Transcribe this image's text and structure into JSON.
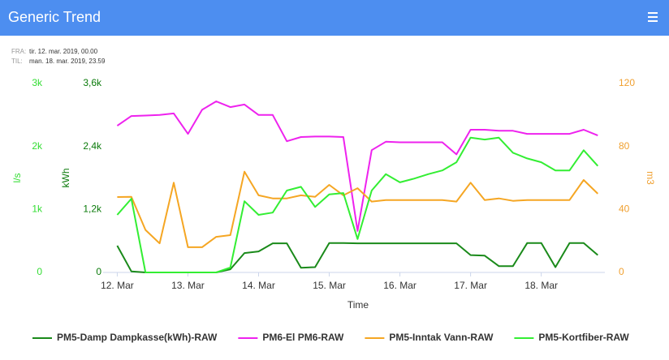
{
  "header": {
    "title": "Generic Trend"
  },
  "range": {
    "from_label": "FRA:",
    "from": "tir. 12. mar. 2019, 00.00",
    "to_label": "TIL:",
    "to": "man. 18. mar. 2019, 23.59"
  },
  "chart_data": {
    "type": "line",
    "x_label": "Time",
    "y_label": "kWh",
    "y2_label": "m3",
    "y3_label": "l/s",
    "x": [
      12.0,
      12.2,
      12.4,
      12.6,
      12.8,
      13.0,
      13.2,
      13.4,
      13.6,
      13.8,
      14.0,
      14.2,
      14.4,
      14.6,
      14.8,
      15.0,
      15.2,
      15.4,
      15.6,
      15.8,
      16.0,
      16.2,
      16.4,
      16.6,
      16.8,
      17.0,
      17.2,
      17.4,
      17.6,
      17.8,
      18.0,
      18.2,
      18.4,
      18.6,
      18.8
    ],
    "xlim": [
      11.8,
      18.9
    ],
    "xticks": [
      {
        "value": 12,
        "label": "12. Mar"
      },
      {
        "value": 13,
        "label": "13. Mar"
      },
      {
        "value": 14,
        "label": "14. Mar"
      },
      {
        "value": 15,
        "label": "15. Mar"
      },
      {
        "value": 16,
        "label": "16. Mar"
      },
      {
        "value": 17,
        "label": "17. Mar"
      },
      {
        "value": 18,
        "label": "18. Mar"
      }
    ],
    "ylim": [
      0,
      3600
    ],
    "yticks": [
      0,
      {
        "value": 1200,
        "label": "1,2k"
      },
      {
        "value": 2400,
        "label": "2,4k"
      },
      {
        "value": 3600,
        "label": "3,6k"
      }
    ],
    "y_color": "#0a7a0a",
    "y2lim": [
      0,
      120
    ],
    "y2ticks": [
      0,
      40,
      80,
      120
    ],
    "y2_color": "#f0a030",
    "y3lim": [
      0,
      3000
    ],
    "y3ticks": [
      0,
      {
        "value": 1000,
        "label": "1k"
      },
      {
        "value": 2000,
        "label": "2k"
      },
      {
        "value": 3000,
        "label": "3k"
      }
    ],
    "y3_color": "#33dd33",
    "series": [
      {
        "name": "PM5-Damp Dampkasse(kWh)-RAW",
        "color": "#1a8a1a",
        "axis": "y",
        "values": [
          510,
          20,
          0,
          0,
          0,
          0,
          0,
          0,
          60,
          370,
          400,
          555,
          555,
          90,
          100,
          560,
          560,
          555,
          555,
          555,
          555,
          555,
          555,
          555,
          555,
          330,
          320,
          120,
          120,
          560,
          560,
          100,
          560,
          560,
          330
        ]
      },
      {
        "name": "PM6-El PM6-RAW",
        "color": "#ee22ee",
        "axis": "y",
        "values": [
          2795,
          2980,
          2990,
          3000,
          3030,
          2640,
          3100,
          3260,
          3150,
          3200,
          3000,
          3000,
          2500,
          2580,
          2590,
          2590,
          2580,
          790,
          2330,
          2490,
          2480,
          2480,
          2480,
          2480,
          2250,
          2720,
          2720,
          2700,
          2700,
          2640,
          2640,
          2640,
          2640,
          2720,
          2610
        ]
      },
      {
        "name": "PM5-Inntak Vann-RAW",
        "color": "#f5a623",
        "axis": "y2",
        "values": [
          47.9,
          48,
          27,
          18.5,
          57,
          16,
          16,
          22.6,
          23.7,
          64,
          49,
          47,
          47,
          49,
          48,
          55.6,
          49,
          53.5,
          45,
          46,
          46,
          46,
          46,
          46,
          45,
          57,
          46,
          47,
          45.5,
          46,
          46,
          46,
          46,
          58.7,
          50
        ]
      },
      {
        "name": "PM5-Kortfiber-RAW",
        "color": "#33ee33",
        "axis": "y3",
        "values": [
          914,
          1170,
          0,
          0,
          0,
          0,
          0,
          0,
          77,
          1130,
          914,
          950,
          1300,
          1360,
          1040,
          1240,
          1260,
          530,
          1300,
          1560,
          1430,
          1490,
          1560,
          1620,
          1750,
          2140,
          2110,
          2140,
          1900,
          1810,
          1750,
          1620,
          1620,
          1940,
          1690
        ]
      }
    ]
  }
}
